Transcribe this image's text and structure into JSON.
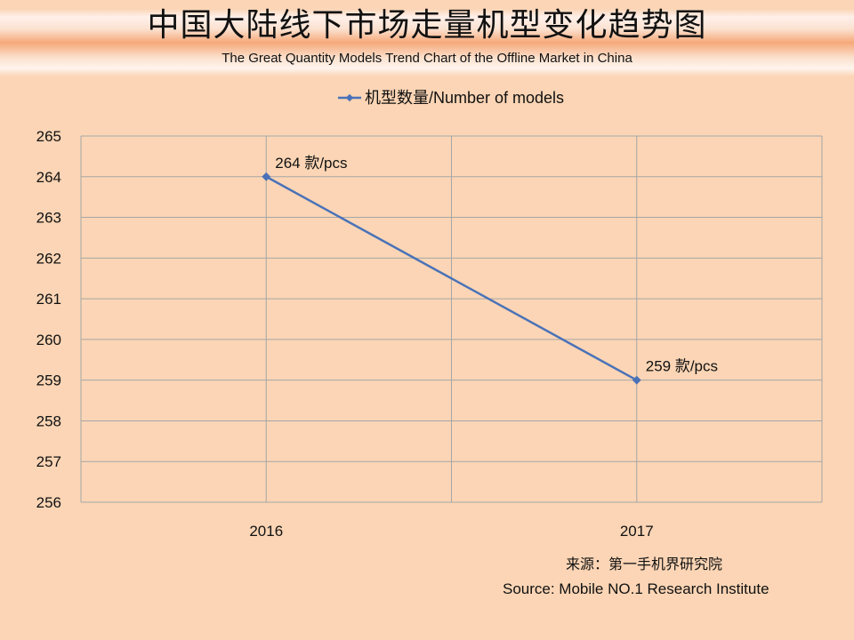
{
  "header": {
    "title": "中国大陆线下市场走量机型变化趋势图",
    "subtitle": "The Great Quantity Models Trend Chart of the Offline Market in China"
  },
  "chart_data": {
    "type": "line",
    "categories": [
      "2016",
      "2017"
    ],
    "series": [
      {
        "name": "机型数量/Number of models",
        "values": [
          264,
          259
        ],
        "color": "#4a72b8",
        "data_labels": [
          "264 款/pcs",
          "259 款/pcs"
        ]
      }
    ],
    "ylim": [
      256,
      265
    ],
    "yticks": [
      256,
      257,
      258,
      259,
      260,
      261,
      262,
      263,
      264,
      265
    ],
    "grid": true,
    "legend_position": "top"
  },
  "source": {
    "cn": "来源：第一手机界研究院",
    "en": "Source: Mobile NO.1 Research Institute"
  }
}
